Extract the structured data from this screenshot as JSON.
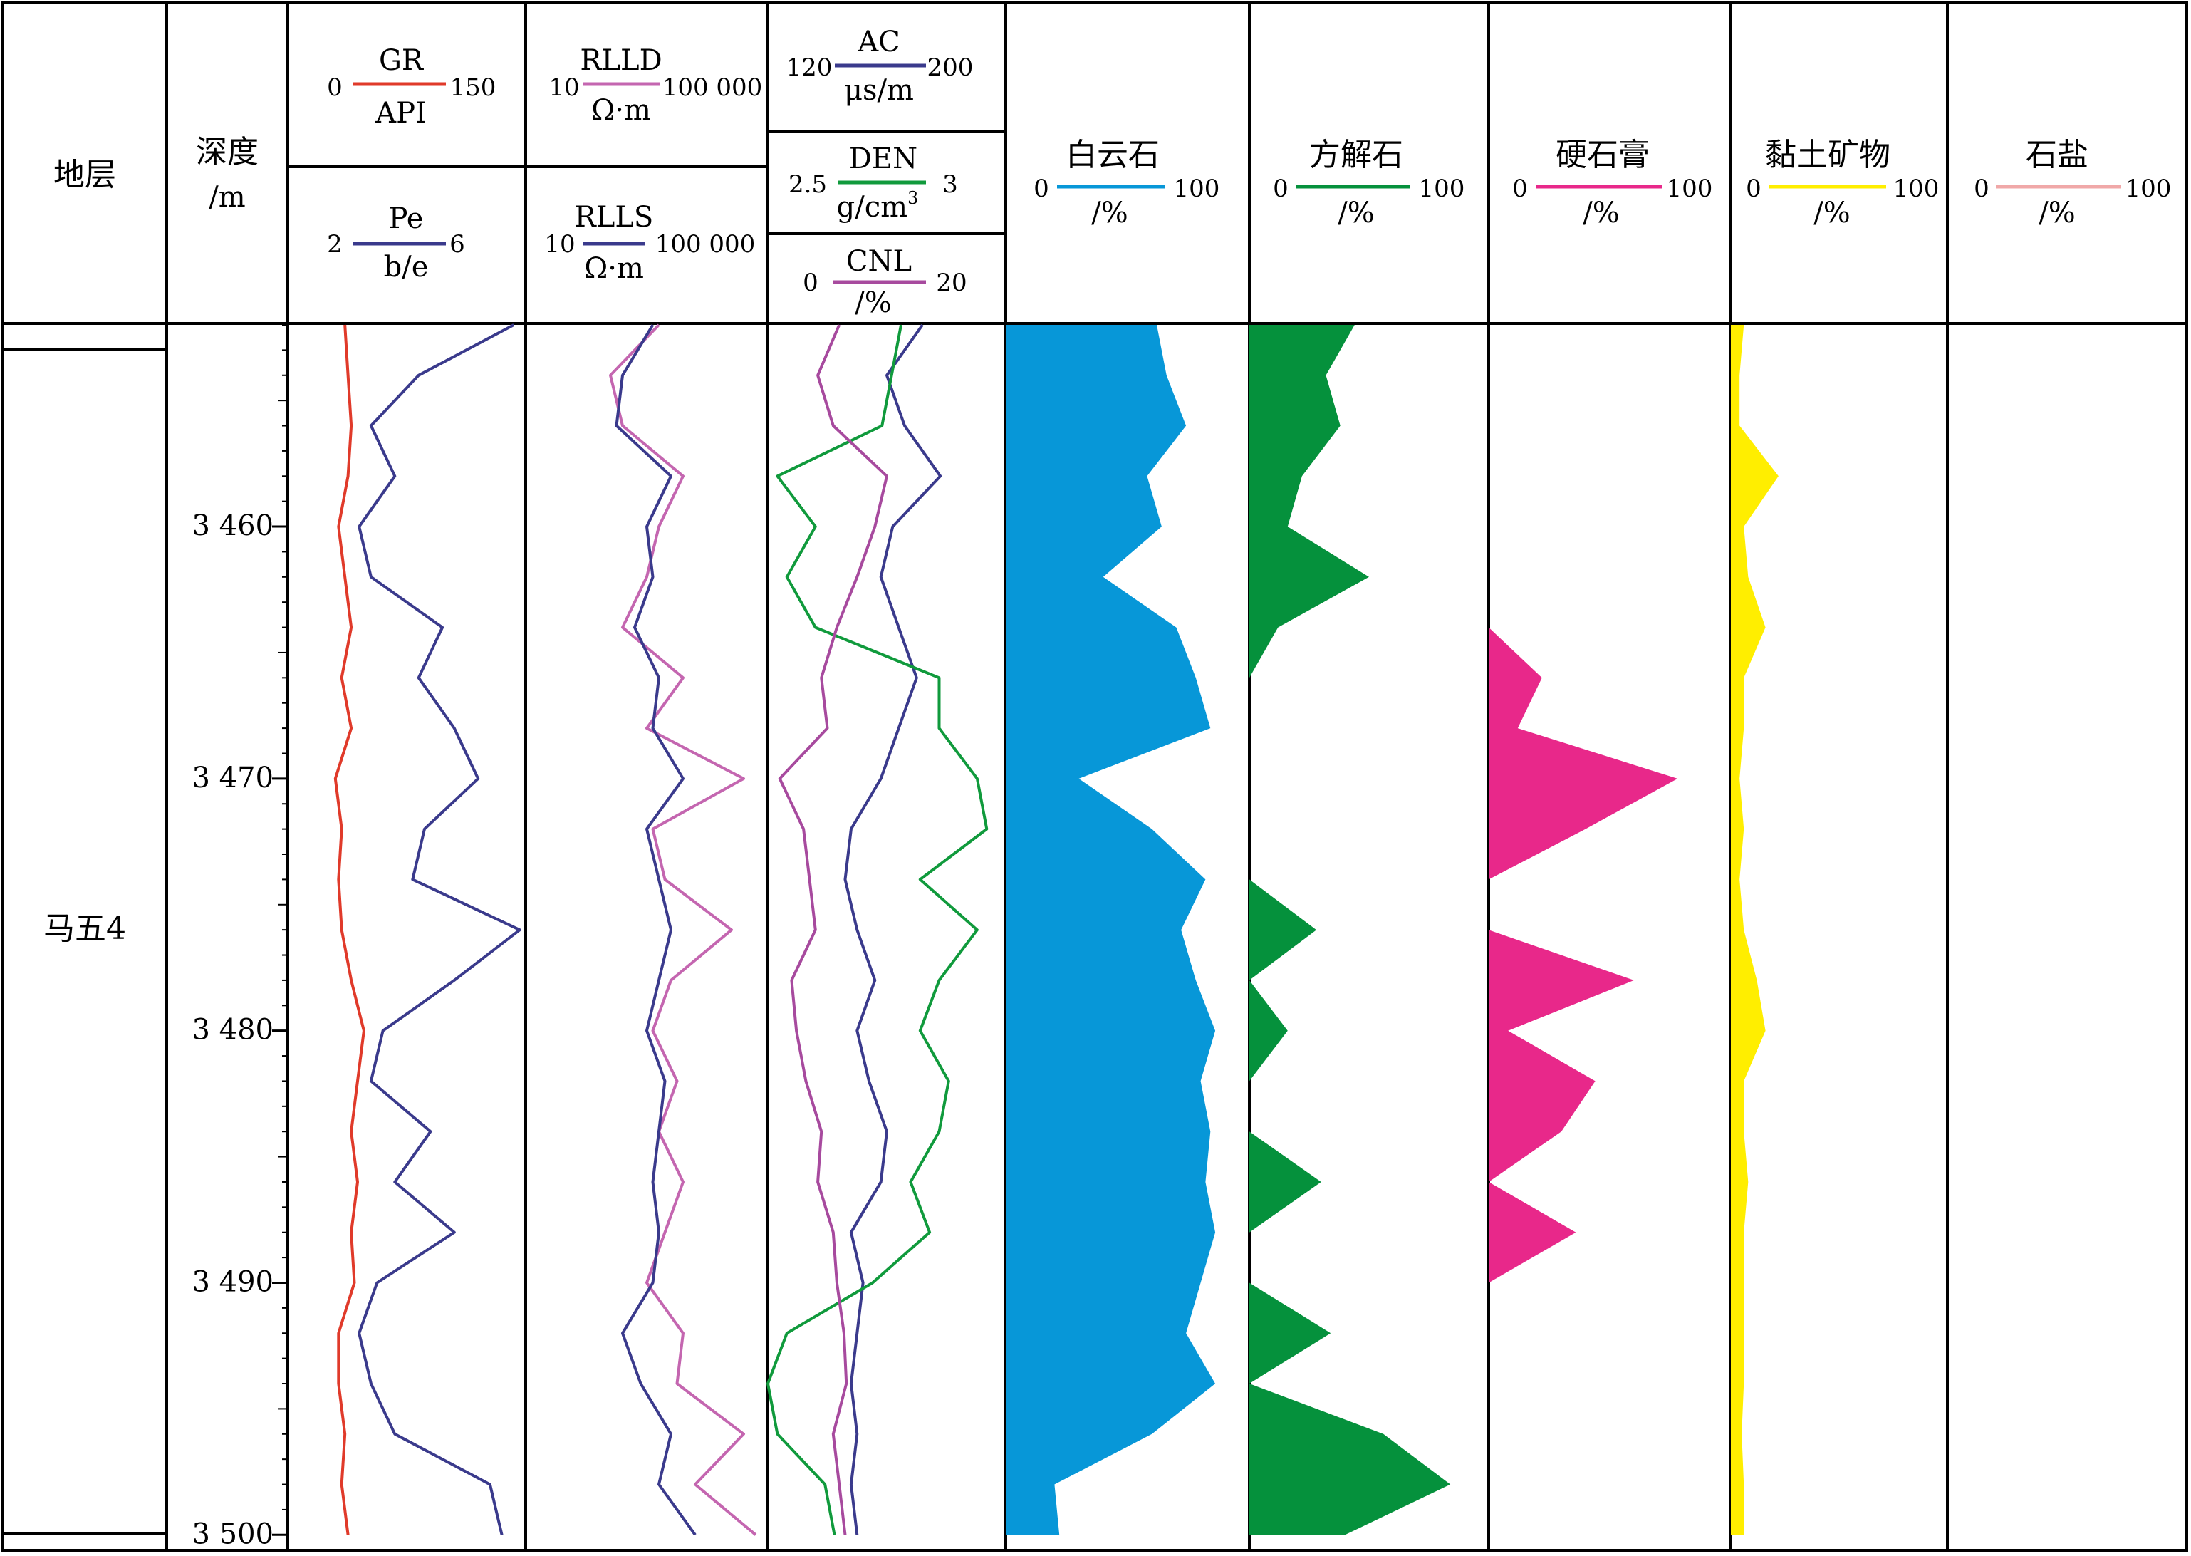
{
  "columns": {
    "strata": {
      "label": "地层"
    },
    "depth": {
      "label": "深度",
      "unit": "/m"
    },
    "gr": {
      "name": "GR",
      "unit": "API",
      "min": "0",
      "max": "150",
      "color": "#e03a2a"
    },
    "pe": {
      "name": "Pe",
      "unit": "b/e",
      "min": "2",
      "max": "6",
      "color": "#3a3a8c"
    },
    "rlld": {
      "name": "RLLD",
      "unit": "Ω·m",
      "min": "10",
      "max": "100 000",
      "color": "#c466b0"
    },
    "rlls": {
      "name": "RLLS",
      "unit": "Ω·m",
      "min": "10",
      "max": "100 000",
      "color": "#3a3a8c"
    },
    "ac": {
      "name": "AC",
      "unit": "μs/m",
      "min": "120",
      "max": "200",
      "color": "#3a3a8c"
    },
    "den": {
      "name": "DEN",
      "unit": "g/cm",
      "unit_sup": "3",
      "min": "2.5",
      "max": "3",
      "color": "#109a3c"
    },
    "cnl": {
      "name": "CNL",
      "unit": "/%",
      "min": "0",
      "max": "20",
      "color": "#a74a9e"
    },
    "dolomite": {
      "name": "白云石",
      "unit": "/%",
      "min": "0",
      "max": "100",
      "color": "#0797d8"
    },
    "calcite": {
      "name": "方解石",
      "unit": "/%",
      "min": "0",
      "max": "100",
      "color": "#05913c"
    },
    "gypsum": {
      "name": "硬石膏",
      "unit": "/%",
      "min": "0",
      "max": "100",
      "color": "#e8288a"
    },
    "clay": {
      "name": "黏土矿物",
      "unit": "/%",
      "min": "0",
      "max": "100",
      "color": "#ffee00"
    },
    "salt": {
      "name": "石盐",
      "unit": "/%",
      "min": "0",
      "max": "100",
      "color": "#f0a8a8"
    }
  },
  "strata_name": "马五4",
  "chart_data": {
    "type": "line",
    "y_axis": "depth (m)",
    "ylim": [
      3452,
      3500.5
    ],
    "depth_ticks": [
      {
        "value": 3460,
        "label": "3 460"
      },
      {
        "value": 3470,
        "label": "3 470"
      },
      {
        "value": 3480,
        "label": "3 480"
      },
      {
        "value": 3490,
        "label": "3 490"
      },
      {
        "value": 3500,
        "label": "3 500"
      }
    ],
    "depth": [
      3452,
      3454,
      3456,
      3458,
      3460,
      3462,
      3464,
      3466,
      3468,
      3470,
      3472,
      3474,
      3476,
      3478,
      3480,
      3482,
      3484,
      3486,
      3488,
      3490,
      3492,
      3494,
      3496,
      3498,
      3500
    ],
    "series": [
      {
        "name": "GR",
        "unit": "API",
        "range": [
          0,
          150
        ],
        "values": [
          36,
          38,
          40,
          38,
          32,
          36,
          40,
          34,
          40,
          30,
          34,
          32,
          34,
          40,
          48,
          44,
          40,
          44,
          40,
          42,
          32,
          32,
          36,
          34,
          38
        ]
      },
      {
        "name": "Pe",
        "unit": "b/e",
        "range": [
          2,
          6
        ],
        "values": [
          5.8,
          4.2,
          3.4,
          3.8,
          3.2,
          3.4,
          4.6,
          4.2,
          4.8,
          5.2,
          4.3,
          4.1,
          5.9,
          4.8,
          3.6,
          3.4,
          4.4,
          3.8,
          4.8,
          3.5,
          3.2,
          3.4,
          3.8,
          5.4,
          5.6
        ]
      },
      {
        "name": "RLLD",
        "unit": "Ω·m",
        "range": [
          1,
          5
        ],
        "scale": "log",
        "values": [
          3.2,
          2.4,
          2.6,
          3.6,
          3.2,
          3.0,
          2.6,
          3.6,
          3.0,
          4.6,
          3.1,
          3.3,
          4.4,
          3.4,
          3.1,
          3.5,
          3.2,
          3.6,
          3.3,
          3.0,
          3.6,
          3.5,
          4.6,
          3.8,
          4.8
        ]
      },
      {
        "name": "RLLS",
        "unit": "Ω·m",
        "range": [
          1,
          5
        ],
        "scale": "log",
        "values": [
          3.1,
          2.6,
          2.5,
          3.4,
          3.0,
          3.1,
          2.8,
          3.2,
          3.1,
          3.6,
          3.0,
          3.2,
          3.4,
          3.2,
          3.0,
          3.3,
          3.2,
          3.1,
          3.2,
          3.1,
          2.6,
          2.9,
          3.4,
          3.2,
          3.8
        ]
      },
      {
        "name": "AC",
        "unit": "μs/m",
        "range": [
          120,
          200
        ],
        "values": [
          172,
          160,
          166,
          178,
          162,
          158,
          164,
          170,
          164,
          158,
          148,
          146,
          150,
          156,
          150,
          154,
          160,
          158,
          148,
          152,
          150,
          148,
          150,
          148,
          150
        ]
      },
      {
        "name": "DEN",
        "unit": "g/cm3",
        "range": [
          2.5,
          3
        ],
        "values": [
          2.78,
          2.76,
          2.74,
          2.52,
          2.6,
          2.54,
          2.6,
          2.86,
          2.86,
          2.94,
          2.96,
          2.82,
          2.94,
          2.86,
          2.82,
          2.88,
          2.86,
          2.8,
          2.84,
          2.72,
          2.54,
          2.5,
          2.52,
          2.62,
          2.64
        ]
      },
      {
        "name": "CNL",
        "unit": "/%",
        "range": [
          0,
          20
        ],
        "values": [
          6,
          4.2,
          5.5,
          10,
          9,
          7.5,
          5.8,
          4.5,
          5,
          1,
          3,
          3.5,
          4,
          2,
          2.4,
          3.2,
          4.5,
          4.2,
          5.5,
          5.8,
          6.4,
          6.6,
          5.5,
          6,
          6.5
        ]
      },
      {
        "name": "白云石",
        "unit": "/%",
        "range": [
          0,
          100
        ],
        "values": [
          62,
          66,
          74,
          58,
          64,
          40,
          70,
          78,
          84,
          30,
          60,
          82,
          72,
          78,
          86,
          80,
          84,
          82,
          86,
          80,
          74,
          86,
          60,
          20,
          22
        ]
      },
      {
        "name": "方解石",
        "unit": "/%",
        "range": [
          0,
          100
        ],
        "values": [
          44,
          32,
          38,
          22,
          16,
          50,
          12,
          0,
          0,
          0,
          0,
          0,
          28,
          0,
          16,
          0,
          0,
          30,
          0,
          0,
          34,
          0,
          56,
          84,
          40
        ]
      },
      {
        "name": "硬石膏",
        "unit": "/%",
        "range": [
          0,
          100
        ],
        "values": [
          0,
          0,
          0,
          0,
          0,
          0,
          0,
          22,
          12,
          78,
          40,
          0,
          0,
          60,
          8,
          44,
          30,
          0,
          36,
          0,
          0,
          0,
          0,
          0,
          0
        ]
      },
      {
        "name": "黏土矿物",
        "unit": "/%",
        "range": [
          0,
          100
        ],
        "values": [
          6,
          4,
          4,
          22,
          6,
          8,
          16,
          6,
          6,
          4,
          6,
          4,
          6,
          12,
          16,
          6,
          6,
          8,
          6,
          6,
          6,
          6,
          5,
          6,
          6
        ]
      },
      {
        "name": "石盐",
        "unit": "/%",
        "range": [
          0,
          100
        ],
        "values": [
          0,
          0,
          0,
          0,
          0,
          0,
          0,
          0,
          0,
          0,
          0,
          0,
          0,
          0,
          0,
          0,
          0,
          0,
          0,
          0,
          0,
          0,
          0,
          0,
          0
        ]
      }
    ]
  }
}
